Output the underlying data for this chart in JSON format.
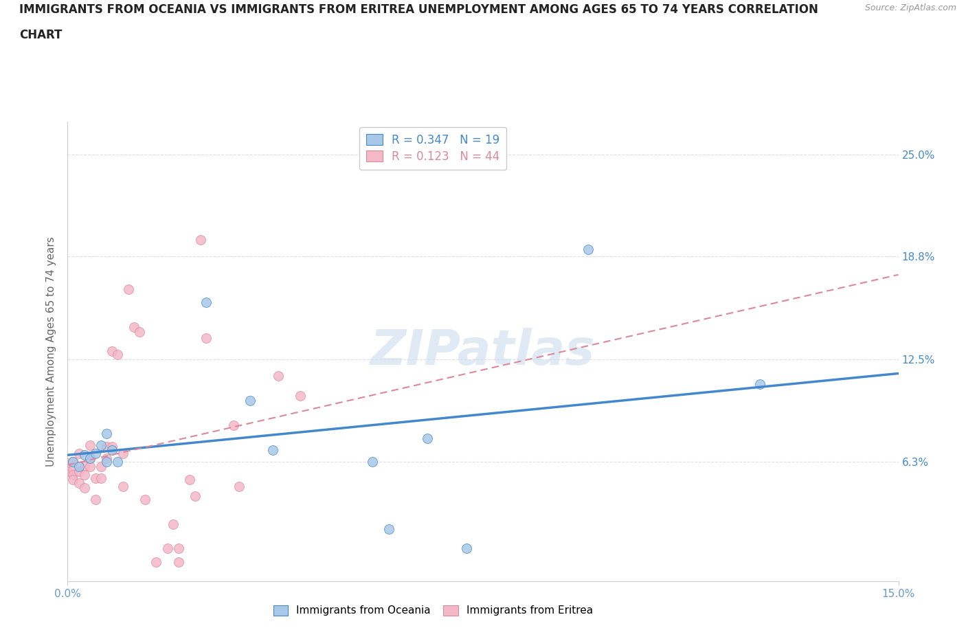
{
  "title_line1": "IMMIGRANTS FROM OCEANIA VS IMMIGRANTS FROM ERITREA UNEMPLOYMENT AMONG AGES 65 TO 74 YEARS CORRELATION",
  "title_line2": "CHART",
  "source": "Source: ZipAtlas.com",
  "ylabel": "Unemployment Among Ages 65 to 74 years",
  "xlim": [
    0.0,
    0.15
  ],
  "ylim": [
    -0.01,
    0.27
  ],
  "xticks": [
    0.0,
    0.15
  ],
  "xticklabels": [
    "0.0%",
    "15.0%"
  ],
  "ytick_positions": [
    0.0,
    0.063,
    0.125,
    0.188,
    0.25
  ],
  "ytick_labels": [
    "",
    "6.3%",
    "12.5%",
    "18.8%",
    "25.0%"
  ],
  "watermark": "ZIPatlas",
  "legend_oceania_R": "R = 0.347",
  "legend_oceania_N": "N = 19",
  "legend_eritrea_R": "R = 0.123",
  "legend_eritrea_N": "N = 44",
  "color_oceania": "#a8c8e8",
  "color_eritrea": "#f4b8c8",
  "line_color_oceania": "#4488cc",
  "line_color_eritrea": "#dd8899",
  "background_color": "#ffffff",
  "grid_color": "#ddddee",
  "oceania_x": [
    0.001,
    0.002,
    0.003,
    0.004,
    0.005,
    0.006,
    0.007,
    0.007,
    0.008,
    0.009,
    0.025,
    0.033,
    0.037,
    0.055,
    0.058,
    0.065,
    0.072,
    0.094,
    0.125
  ],
  "oceania_y": [
    0.063,
    0.06,
    0.067,
    0.065,
    0.068,
    0.073,
    0.08,
    0.063,
    0.07,
    0.063,
    0.16,
    0.1,
    0.07,
    0.063,
    0.022,
    0.077,
    0.01,
    0.192,
    0.11
  ],
  "eritrea_x": [
    0.0,
    0.0,
    0.001,
    0.001,
    0.001,
    0.001,
    0.001,
    0.002,
    0.002,
    0.002,
    0.003,
    0.003,
    0.003,
    0.004,
    0.004,
    0.004,
    0.005,
    0.005,
    0.006,
    0.006,
    0.007,
    0.007,
    0.008,
    0.008,
    0.009,
    0.01,
    0.01,
    0.011,
    0.012,
    0.013,
    0.014,
    0.016,
    0.018,
    0.019,
    0.02,
    0.02,
    0.022,
    0.023,
    0.024,
    0.025,
    0.03,
    0.031,
    0.038,
    0.042
  ],
  "eritrea_y": [
    0.062,
    0.057,
    0.063,
    0.058,
    0.055,
    0.063,
    0.052,
    0.057,
    0.05,
    0.068,
    0.06,
    0.047,
    0.055,
    0.073,
    0.065,
    0.06,
    0.04,
    0.053,
    0.053,
    0.06,
    0.065,
    0.072,
    0.072,
    0.13,
    0.128,
    0.068,
    0.048,
    0.168,
    0.145,
    0.142,
    0.04,
    0.002,
    0.01,
    0.025,
    0.01,
    0.002,
    0.052,
    0.042,
    0.198,
    0.138,
    0.085,
    0.048,
    0.115,
    0.103
  ]
}
